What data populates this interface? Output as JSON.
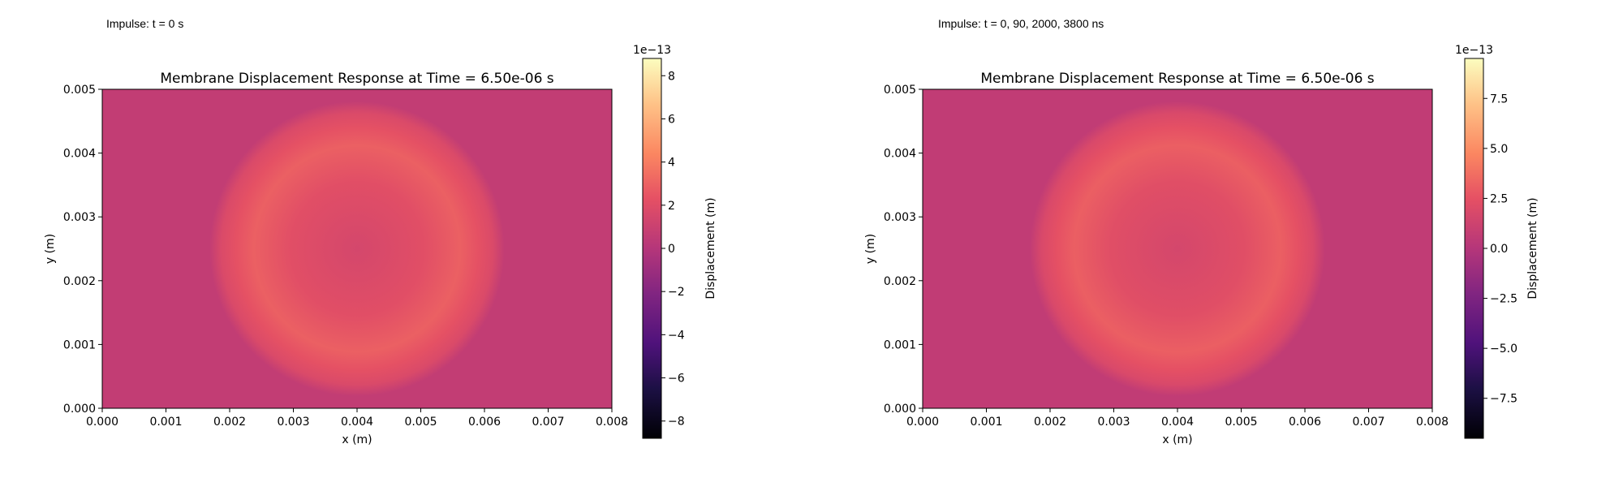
{
  "notes": [
    "Impulse: t = 0 s",
    "Impulse: t = 0, 90, 2000, 3800 ns"
  ],
  "chart_data": [
    {
      "type": "heatmap",
      "title": "Membrane Displacement Response at Time = 6.50e-06 s",
      "xlabel": "x (m)",
      "ylabel": "y (m)",
      "xlim": [
        0.0,
        0.008
      ],
      "ylim": [
        0.0,
        0.005
      ],
      "xticks": [
        "0.000",
        "0.001",
        "0.002",
        "0.003",
        "0.004",
        "0.005",
        "0.006",
        "0.007",
        "0.008"
      ],
      "yticks": [
        "0.000",
        "0.001",
        "0.002",
        "0.003",
        "0.004",
        "0.005"
      ],
      "colormap": "magma",
      "colorbar": {
        "label": "Displacement (m)",
        "offset_text": "1e−13",
        "range": [
          -8.8,
          8.8
        ],
        "ticks": [
          -8,
          -6,
          -4,
          -2,
          0,
          2,
          4,
          6,
          8
        ],
        "tick_labels": [
          "−8",
          "−6",
          "−4",
          "−2",
          "0",
          "2",
          "4",
          "6",
          "8"
        ]
      },
      "field": {
        "background": 0.6,
        "center": [
          0.004,
          0.0025
        ],
        "ring_peak_radius": 0.00163,
        "ring_peak": 2.9,
        "center_value": 1.5
      }
    },
    {
      "type": "heatmap",
      "title": "Membrane Displacement Response at Time = 6.50e-06 s",
      "xlabel": "x (m)",
      "ylabel": "y (m)",
      "xlim": [
        0.0,
        0.008
      ],
      "ylim": [
        0.0,
        0.005
      ],
      "xticks": [
        "0.000",
        "0.001",
        "0.002",
        "0.003",
        "0.004",
        "0.005",
        "0.006",
        "0.007",
        "0.008"
      ],
      "yticks": [
        "0.000",
        "0.001",
        "0.002",
        "0.003",
        "0.004",
        "0.005"
      ],
      "colormap": "magma",
      "colorbar": {
        "label": "Displacement (m)",
        "offset_text": "1e−13",
        "range": [
          -9.5,
          9.5
        ],
        "ticks": [
          -7.5,
          -5.0,
          -2.5,
          0.0,
          2.5,
          5.0,
          7.5
        ],
        "tick_labels": [
          "−7.5",
          "−5.0",
          "−2.5",
          "0.0",
          "2.5",
          "5.0",
          "7.5"
        ]
      },
      "field": {
        "background": 0.6,
        "center": [
          0.004,
          0.0025
        ],
        "ring_peak_radius": 0.00163,
        "ring_peak": 3.1,
        "center_value": 1.6
      }
    }
  ]
}
